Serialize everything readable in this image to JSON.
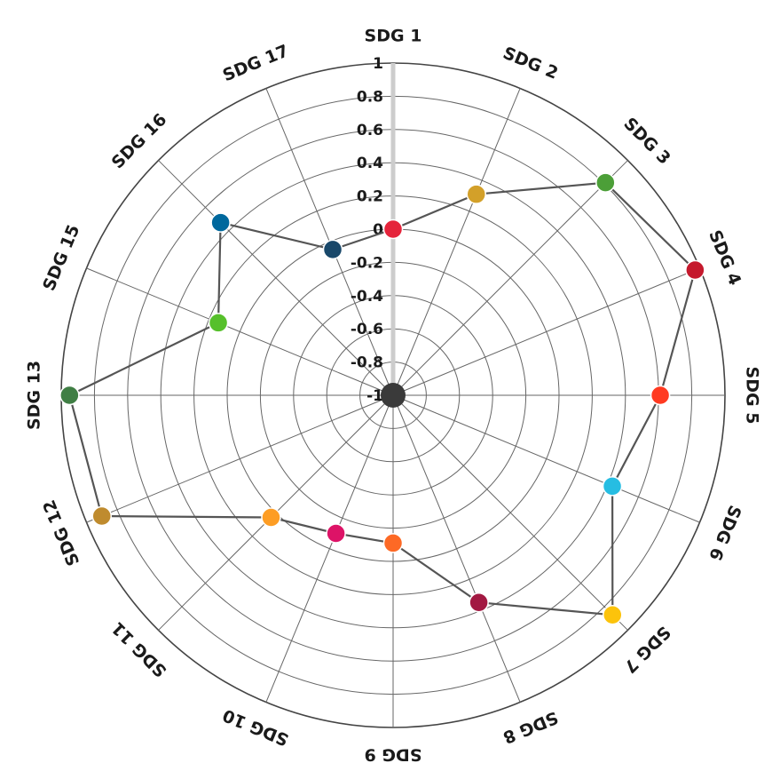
{
  "chart_data": {
    "type": "radar",
    "title": "",
    "categories": [
      "SDG 1",
      "SDG 2",
      "SDG 3",
      "SDG 4",
      "SDG 5",
      "SDG 6",
      "SDG 7",
      "SDG 8",
      "SDG 9",
      "SDG 10",
      "SDG 11",
      "SDG 12",
      "SDG 13",
      "SDG 15",
      "SDG 16",
      "SDG 17"
    ],
    "values": [
      0.0,
      0.31,
      0.81,
      0.97,
      0.61,
      0.43,
      0.87,
      0.35,
      -0.11,
      -0.1,
      0.04,
      0.9,
      0.95,
      0.14,
      0.47,
      -0.05
    ],
    "point_colors": [
      "#e5243b",
      "#d3a029",
      "#4c9f38",
      "#c5192d",
      "#ff3a21",
      "#26bde2",
      "#fcc30b",
      "#a21942",
      "#fd6925",
      "#dd1367",
      "#fd9d24",
      "#bf8b2e",
      "#3f7e44",
      "#56c02b",
      "#00689d",
      "#19486a"
    ],
    "rlim": [
      -1,
      1
    ],
    "rticks": [
      "1",
      "0.8",
      "0.6",
      "0.4",
      "0.2",
      "0",
      "-0.2",
      "-0.4",
      "-0.6",
      "-0.8",
      "-1"
    ],
    "grid": true,
    "line_color": "#555555",
    "axis_highlight_color": "#cccccc",
    "center_color": "#3a3a3a"
  }
}
